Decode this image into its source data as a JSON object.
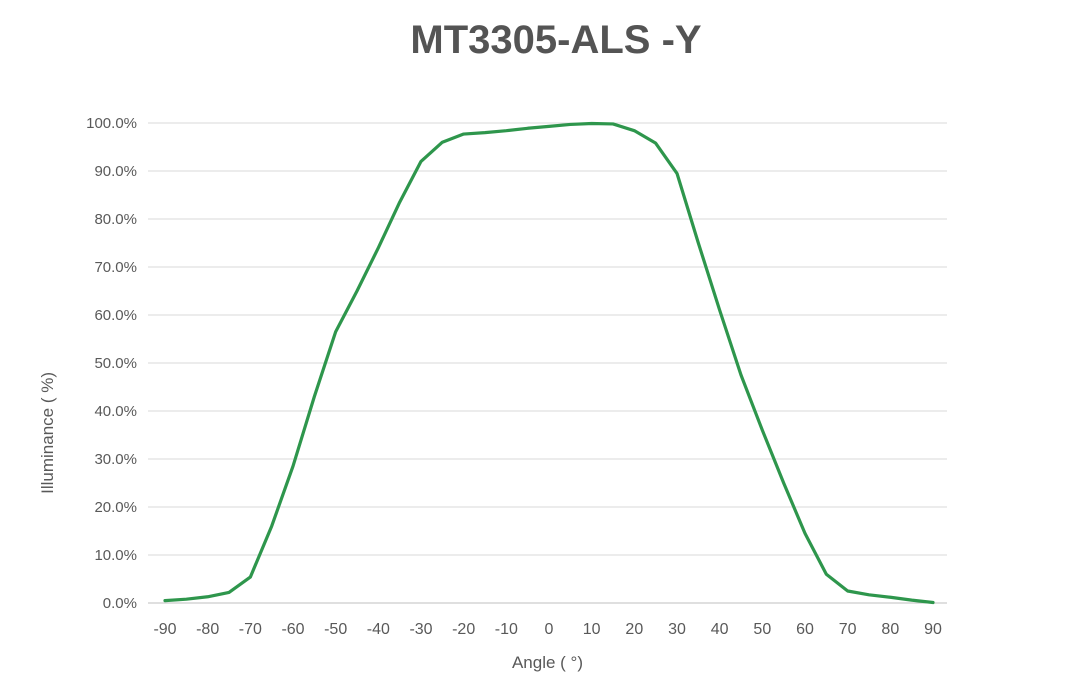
{
  "chart_data": {
    "type": "line",
    "title": "MT3305-ALS -Y",
    "xlabel": "Angle ( °)",
    "ylabel": "Illuminance ( %)",
    "legend": "none",
    "grid": "horizontal",
    "line_color": "#2e964c",
    "gridline_color": "#d9d9d9",
    "axis_line_color": "#bfbfbf",
    "tick_label_color": "#595959",
    "title_color": "#545454",
    "xlim": [
      -90,
      90
    ],
    "ylim_percent": [
      0,
      100
    ],
    "x_ticks": [
      -90,
      -80,
      -70,
      -60,
      -50,
      -40,
      -30,
      -20,
      -10,
      0,
      10,
      20,
      30,
      40,
      50,
      60,
      70,
      80,
      90
    ],
    "y_ticks": [
      "0.0%",
      "10.0%",
      "20.0%",
      "30.0%",
      "40.0%",
      "50.0%",
      "60.0%",
      "70.0%",
      "80.0%",
      "90.0%",
      "100.0%"
    ],
    "x": [
      -90,
      -85,
      -80,
      -75,
      -70,
      -65,
      -60,
      -55,
      -50,
      -45,
      -40,
      -35,
      -30,
      -25,
      -20,
      -15,
      -10,
      -5,
      0,
      5,
      10,
      15,
      20,
      25,
      30,
      35,
      40,
      45,
      50,
      55,
      60,
      65,
      70,
      75,
      80,
      85,
      90
    ],
    "values": [
      0.5,
      0.8,
      1.3,
      2.2,
      5.4,
      16,
      28.5,
      43,
      56.5,
      65,
      74,
      83.5,
      92,
      96,
      97.7,
      98.0,
      98.4,
      98.9,
      99.3,
      99.7,
      99.9,
      99.8,
      98.4,
      95.8,
      89.5,
      75,
      61,
      47.5,
      36,
      25,
      14.5,
      6,
      2.5,
      1.7,
      1.2,
      0.6,
      0.1
    ]
  }
}
